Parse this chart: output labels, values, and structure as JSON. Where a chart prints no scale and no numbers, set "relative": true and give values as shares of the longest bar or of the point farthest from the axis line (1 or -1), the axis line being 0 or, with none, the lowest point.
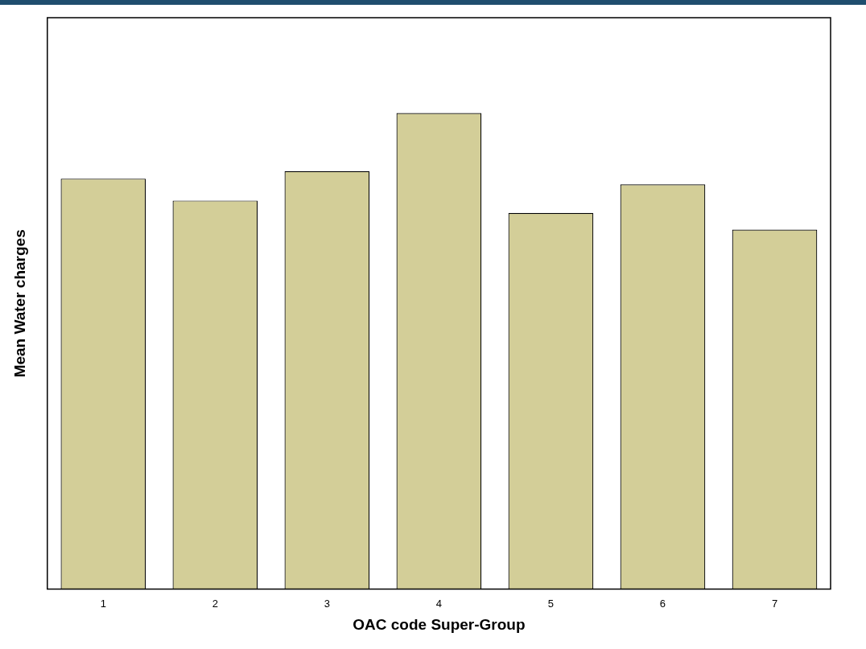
{
  "chart_data": {
    "type": "bar",
    "relative": true,
    "xlabel": "OAC code Super-Group",
    "ylabel": "Mean Water charges",
    "categories": [
      "1",
      "2",
      "3",
      "4",
      "5",
      "6",
      "7"
    ],
    "values": [
      0.862,
      0.816,
      0.878,
      1,
      0.79,
      0.85,
      0.755
    ],
    "color": "#d3ce98",
    "grid": false,
    "legend": false
  }
}
